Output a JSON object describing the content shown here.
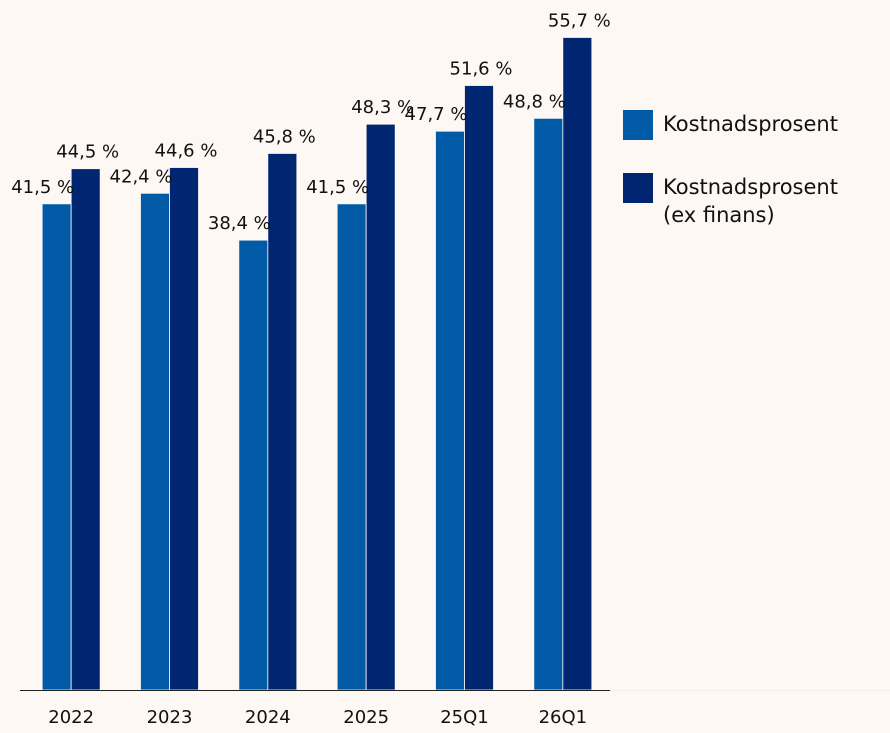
{
  "chart_data": {
    "type": "bar",
    "categories": [
      "2022",
      "2023",
      "2024",
      "2025",
      "25Q1",
      "26Q1"
    ],
    "series": [
      {
        "name": "Kostnadsprosent",
        "color": "#005aa5",
        "values": [
          41.5,
          42.4,
          38.4,
          41.5,
          47.7,
          48.8
        ],
        "value_labels": [
          "41,5 %",
          "42,4 %",
          "38,4 %",
          "41,5 %",
          "47,7 %",
          "48,8 %"
        ]
      },
      {
        "name": "Kostnadsprosent (ex finans)",
        "color": "#002672",
        "values": [
          44.5,
          44.6,
          45.8,
          48.3,
          51.6,
          55.7
        ],
        "value_labels": [
          "44,5 %",
          "44,6 %",
          "45,8 %",
          "48,3 %",
          "51,6 %",
          "55,7 %"
        ]
      }
    ],
    "ylim": [
      0,
      58.9
    ],
    "legend": "right"
  }
}
